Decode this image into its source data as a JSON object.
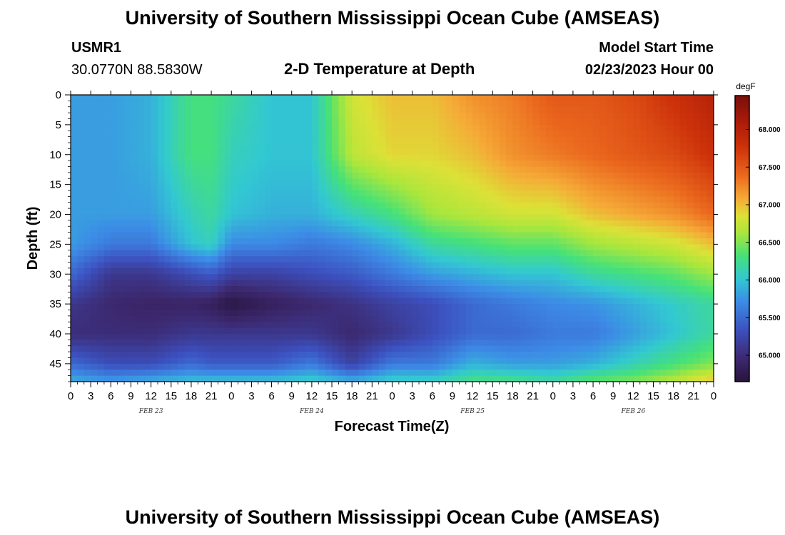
{
  "header": {
    "title": "University of Southern Mississippi Ocean Cube (AMSEAS)",
    "station_id": "USMR1",
    "station_coords": "30.0770N  88.5830W",
    "plot_title": "2-D Temperature at Depth",
    "model_start_label": "Model Start Time",
    "model_start_value": "02/23/2023 Hour 00"
  },
  "footer": {
    "title": "University of Southern Mississippi Ocean Cube (AMSEAS)"
  },
  "chart_data": {
    "type": "heatmap",
    "title": "2-D Temperature at Depth",
    "xlabel": "Forecast Time(Z)",
    "ylabel": "Depth (ft)",
    "x_unit": "hours from 02/23/2023 00Z",
    "x_range": [
      0,
      96
    ],
    "y_range": [
      0,
      48
    ],
    "x_tick_labels": [
      "0",
      "3",
      "6",
      "9",
      "12",
      "15",
      "18",
      "21",
      "0",
      "3",
      "6",
      "9",
      "12",
      "15",
      "18",
      "21",
      "0",
      "3",
      "6",
      "9",
      "12",
      "15",
      "18",
      "21",
      "0",
      "3",
      "6",
      "9",
      "12",
      "15",
      "18",
      "21",
      "0"
    ],
    "day_labels": [
      {
        "label": "FEB 23",
        "hour": 12
      },
      {
        "label": "FEB 24",
        "hour": 36
      },
      {
        "label": "FEB 25",
        "hour": 60
      },
      {
        "label": "FEB 26",
        "hour": 84
      }
    ],
    "y_ticks": [
      0,
      5,
      10,
      15,
      20,
      25,
      30,
      35,
      40,
      45
    ],
    "colorbar": {
      "unit": "degF",
      "range": [
        64.65,
        68.45
      ],
      "ticks": [
        "65.000",
        "65.500",
        "66.000",
        "66.500",
        "67.000",
        "67.500",
        "68.000"
      ]
    },
    "hours": [
      0,
      6,
      12,
      18,
      21,
      24,
      30,
      36,
      42,
      48,
      54,
      60,
      66,
      72,
      78,
      84,
      90,
      96
    ],
    "depths": [
      0,
      10,
      20,
      25,
      30,
      35,
      40,
      45,
      48
    ],
    "temperatures_degF": [
      [
        65.8,
        65.8,
        65.8,
        65.8,
        65.5,
        65.1,
        65.0,
        65.5,
        65.9
      ],
      [
        65.8,
        65.8,
        65.8,
        65.6,
        65.1,
        64.95,
        65.0,
        65.3,
        65.8
      ],
      [
        65.9,
        65.9,
        65.8,
        65.6,
        65.1,
        64.9,
        65.0,
        65.3,
        65.9
      ],
      [
        66.3,
        66.3,
        66.1,
        66.0,
        65.3,
        64.9,
        65.1,
        65.5,
        66.0
      ],
      [
        66.3,
        66.3,
        66.2,
        66.1,
        65.4,
        64.85,
        65.1,
        65.4,
        66.0
      ],
      [
        66.2,
        66.1,
        66.0,
        65.7,
        65.2,
        64.7,
        65.1,
        65.4,
        66.0
      ],
      [
        66.0,
        66.0,
        65.9,
        65.7,
        65.2,
        64.85,
        65.1,
        65.4,
        66.0
      ],
      [
        66.0,
        66.0,
        65.9,
        65.6,
        65.3,
        64.95,
        65.1,
        65.6,
        66.1
      ],
      [
        66.8,
        66.7,
        66.1,
        65.7,
        65.4,
        65.05,
        64.95,
        65.2,
        65.9
      ],
      [
        67.0,
        66.9,
        66.3,
        65.9,
        65.6,
        65.2,
        65.1,
        65.6,
        66.1
      ],
      [
        67.0,
        66.9,
        66.6,
        66.2,
        65.8,
        65.3,
        65.3,
        65.6,
        66.1
      ],
      [
        67.2,
        67.0,
        66.7,
        66.3,
        65.9,
        65.5,
        65.5,
        65.9,
        66.3
      ],
      [
        67.3,
        67.2,
        66.8,
        66.4,
        66.0,
        65.6,
        65.5,
        65.8,
        66.3
      ],
      [
        67.5,
        67.3,
        66.8,
        66.4,
        66.0,
        65.7,
        65.6,
        65.8,
        66.2
      ],
      [
        67.5,
        67.4,
        67.0,
        66.6,
        66.2,
        65.75,
        65.6,
        65.9,
        66.4
      ],
      [
        67.6,
        67.5,
        67.1,
        66.7,
        66.3,
        65.9,
        65.8,
        66.1,
        66.5
      ],
      [
        67.8,
        67.6,
        67.2,
        66.8,
        66.4,
        66.05,
        66.0,
        66.3,
        66.7
      ],
      [
        68.0,
        67.8,
        67.4,
        67.0,
        66.6,
        66.2,
        66.2,
        66.5,
        67.0
      ]
    ]
  }
}
